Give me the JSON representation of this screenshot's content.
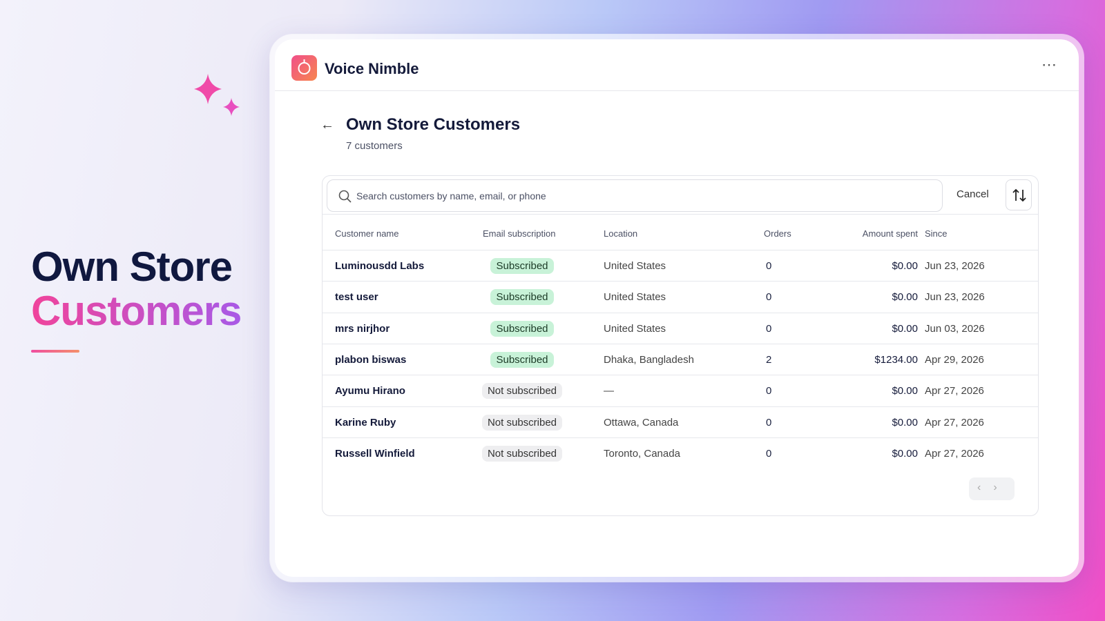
{
  "hero": {
    "title_line1": "Own Store",
    "title_line2": "Customers"
  },
  "app": {
    "name": "Voice Nimble"
  },
  "page": {
    "title": "Own Store Customers",
    "subtitle": "7 customers"
  },
  "search": {
    "placeholder": "Search customers by name, email, or phone",
    "cancel": "Cancel"
  },
  "table": {
    "headers": [
      "Customer name",
      "Email subscription",
      "Location",
      "Orders",
      "Amount spent",
      "Since"
    ],
    "rows": [
      [
        "Luminousdd Labs",
        "Subscribed",
        "United States",
        "0",
        "$0.00",
        "Jun 23, 2026"
      ],
      [
        "test user",
        "Subscribed",
        "United States",
        "0",
        "$0.00",
        "Jun 23, 2026"
      ],
      [
        "mrs nirjhor",
        "Subscribed",
        "United States",
        "0",
        "$0.00",
        "Jun 03, 2026"
      ],
      [
        "plabon biswas",
        "Subscribed",
        "Dhaka, Bangladesh",
        "2",
        "$1234.00",
        "Apr 29, 2026"
      ],
      [
        "Ayumu Hirano",
        "Not subscribed",
        "—",
        "0",
        "$0.00",
        "Apr 27, 2026"
      ],
      [
        "Karine Ruby",
        "Not subscribed",
        "Ottawa, Canada",
        "0",
        "$0.00",
        "Apr 27, 2026"
      ],
      [
        "Russell Winfield",
        "Not subscribed",
        "Toronto, Canada",
        "0",
        "$0.00",
        "Apr 27, 2026"
      ]
    ]
  }
}
